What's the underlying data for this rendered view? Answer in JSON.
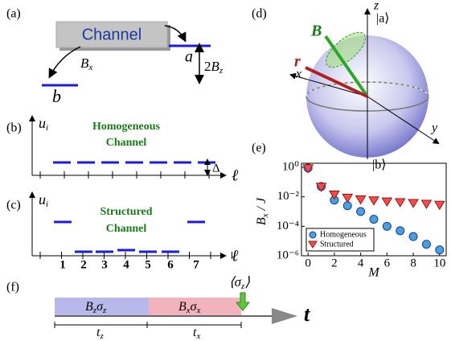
{
  "panels": {
    "a": {
      "label": "(a)",
      "channel": "Channel",
      "state_a": "a",
      "state_b": "b",
      "coupling_z": {
        "coef": "2",
        "sym": "B",
        "sub": "z"
      },
      "coupling_x": {
        "sym": "B",
        "sub": "x"
      }
    },
    "b": {
      "label": "(b)",
      "y_axis": {
        "sym": "u",
        "sub": "i"
      },
      "x_axis": "ℓ",
      "title_lines": [
        "Homogeneous",
        "Channel"
      ],
      "gap": "Δ"
    },
    "c": {
      "label": "(c)",
      "y_axis": {
        "sym": "u",
        "sub": "i"
      },
      "x_axis": "ℓ",
      "title_lines": [
        "Structured",
        "Channel"
      ],
      "sites": [
        "1",
        "2",
        "3",
        "4",
        "5",
        "6",
        "7"
      ]
    },
    "d": {
      "label": "(d)",
      "z": "z",
      "x": "x",
      "y": "y",
      "ket_a": "|a⟩",
      "ket_b": "|b⟩",
      "field": "B",
      "vector": "r"
    },
    "f": {
      "label": "(f)",
      "pulse_z": {
        "sym": "B",
        "sub": "z",
        "op": "σ",
        "op_sub": "z"
      },
      "pulse_x": {
        "sym": "B",
        "sub": "x",
        "op": "σ",
        "op_sub": "x"
      },
      "measure": {
        "open": "⟨σ",
        "sub": "z",
        "close": "⟩"
      },
      "time": "t",
      "t_z": {
        "sym": "t",
        "sub": "z"
      },
      "t_x": {
        "sym": "t",
        "sub": "x"
      }
    }
  },
  "chart_data": {
    "type": "scatter",
    "label": "(e)",
    "x": [
      0,
      1,
      2,
      3,
      4,
      5,
      6,
      7,
      8,
      9,
      10
    ],
    "series": [
      {
        "name": "Homogeneous",
        "color": "#4a9fe0",
        "marker": "circle",
        "values": [
          0.9,
          0.05,
          0.006,
          0.0025,
          0.001,
          0.0003,
          0.0001,
          5e-05,
          2e-05,
          6e-06,
          2.5e-06
        ]
      },
      {
        "name": "Structured",
        "color": "#ff4a4a",
        "marker": "triangle",
        "values": [
          0.9,
          0.05,
          0.015,
          0.009,
          0.007,
          0.006,
          0.005,
          0.0045,
          0.004,
          0.0035,
          0.003
        ]
      }
    ],
    "xlabel": "M",
    "ylabel": {
      "sym": "B",
      "sub": "x",
      "rest": " / J"
    },
    "xlim": [
      -0.5,
      10.5
    ],
    "ylim": [
      1e-06,
      1
    ],
    "yscale": "log",
    "xticks": [
      0,
      2,
      4,
      6,
      8,
      10
    ],
    "yticks": [
      {
        "value": 1,
        "label": "10⁰"
      },
      {
        "value": 0.01,
        "label": "10⁻²"
      },
      {
        "value": 0.0001,
        "label": "10⁻⁴"
      },
      {
        "value": 1e-06,
        "label": "10⁻⁶"
      }
    ],
    "legend": "lower left"
  }
}
